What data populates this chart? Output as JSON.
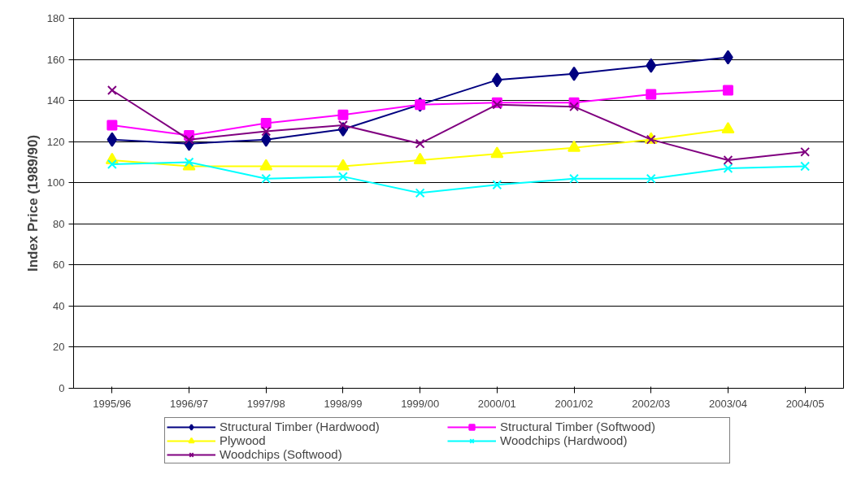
{
  "chart_data": {
    "type": "line",
    "ylabel": "Index Price (1989/90)",
    "categories": [
      "1995/96",
      "1996/97",
      "1997/98",
      "1998/99",
      "1999/00",
      "2000/01",
      "2001/02",
      "2002/03",
      "2003/04",
      "2004/05"
    ],
    "series": [
      {
        "name": "Structural Timber (Hardwood)",
        "color": "#000080",
        "marker": "diamond",
        "values": [
          121,
          119,
          121,
          126,
          138,
          150,
          153,
          157,
          161,
          null
        ]
      },
      {
        "name": "Structural Timber (Softwood)",
        "color": "#ff00ff",
        "marker": "square",
        "values": [
          128,
          123,
          129,
          133,
          138,
          139,
          139,
          143,
          145,
          null
        ]
      },
      {
        "name": "Plywood",
        "color": "#ffff00",
        "marker": "triangle",
        "values": [
          111,
          108,
          108,
          108,
          111,
          114,
          117,
          121,
          126,
          null
        ]
      },
      {
        "name": "Woodchips (Hardwood)",
        "color": "#00ffff",
        "marker": "cross",
        "values": [
          109,
          110,
          102,
          103,
          95,
          99,
          102,
          102,
          107,
          108
        ]
      },
      {
        "name": "Woodchips (Softwood)",
        "color": "#800080",
        "marker": "cross",
        "values": [
          145,
          121,
          125,
          128,
          119,
          138,
          137,
          121,
          111,
          115
        ]
      }
    ],
    "ylim": [
      0,
      180
    ],
    "yticks": [
      0,
      20,
      40,
      60,
      80,
      100,
      120,
      140,
      160,
      180
    ],
    "grid": "y",
    "legend": "bottom"
  }
}
